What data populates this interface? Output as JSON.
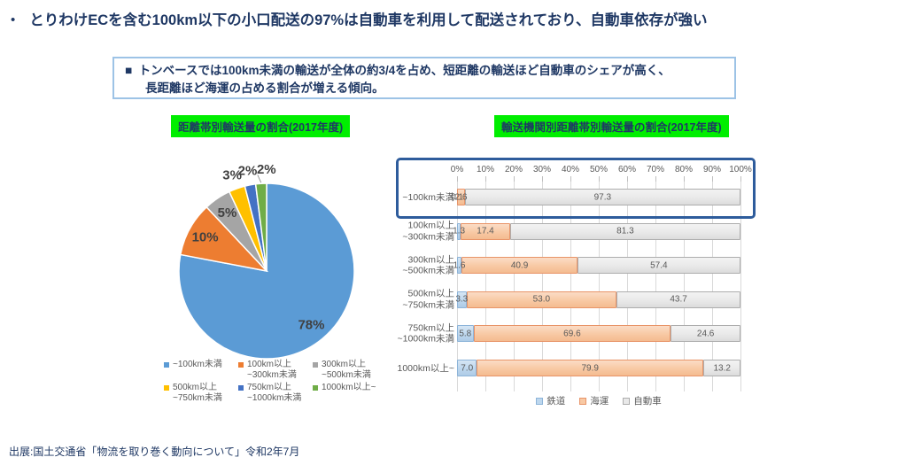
{
  "page": {
    "title_bullet": "•",
    "title": "とりわけECを含む100km以下の小口配送の97%は自動車を利用して配送されており、自動車依存が強い",
    "note_bullet": "■",
    "note_line1": "トンベースでは100km未満の輸送が全体の約3/4を占め、短距離の輸送ほど自動車のシェアが高く、",
    "note_line2": "長距離ほど海運の占める割合が増える傾向。",
    "source": "出展:国土交通省「物流を取り巻く動向について」令和2年7月"
  },
  "colors": {
    "navy_text": "#1F3864",
    "green_highlight": "#00EE00",
    "note_border": "#9DC3E6",
    "highlight_box_border": "#2E5C9C",
    "grid_line": "#D9D9D9",
    "axis_text": "#595959",
    "pie_label": "#404040"
  },
  "chart_data": [
    {
      "type": "pie",
      "title": "距離帯別輸送量の割合(2017年度)",
      "categories": [
        "~100km未満",
        "100km以上~300km未満",
        "300km以上~500km未満",
        "500km以上~750km未満",
        "750km以上~1000km未満",
        "1000km以上~"
      ],
      "values": [
        78,
        10,
        5,
        3,
        2,
        2
      ],
      "labels": [
        "78%",
        "10%",
        "5%",
        "3%",
        "2%",
        "2%"
      ],
      "unit": "%",
      "colors": [
        "#5B9BD5",
        "#ED7D31",
        "#A5A5A5",
        "#FFC000",
        "#4472C4",
        "#70AD47"
      ],
      "legend_position": "bottom",
      "start_angle_deg": 0,
      "direction": "clockwise"
    },
    {
      "type": "bar",
      "subtype": "stacked-horizontal",
      "title": "輸送機関別距離帯別輸送量の割合(2017年度)",
      "categories": [
        "~100km未満",
        "100km以上~300km未満",
        "300km以上~500km未満",
        "500km以上~750km未満",
        "750km以上~1000km未満",
        "1000km以上~"
      ],
      "series": [
        {
          "name": "鉄道",
          "values": [
            0.1,
            1.3,
            1.6,
            3.3,
            5.8,
            7.0
          ]
        },
        {
          "name": "海運",
          "values": [
            2.6,
            17.4,
            40.9,
            53.0,
            69.6,
            79.9
          ]
        },
        {
          "name": "自動車",
          "values": [
            97.3,
            81.3,
            57.4,
            43.7,
            24.6,
            13.2
          ]
        }
      ],
      "xlim": [
        0,
        100
      ],
      "x_ticks": [
        "0%",
        "10%",
        "20%",
        "30%",
        "40%",
        "50%",
        "60%",
        "70%",
        "80%",
        "90%",
        "100%"
      ],
      "grid": true,
      "legend_position": "bottom",
      "highlighted_row": 0
    }
  ]
}
